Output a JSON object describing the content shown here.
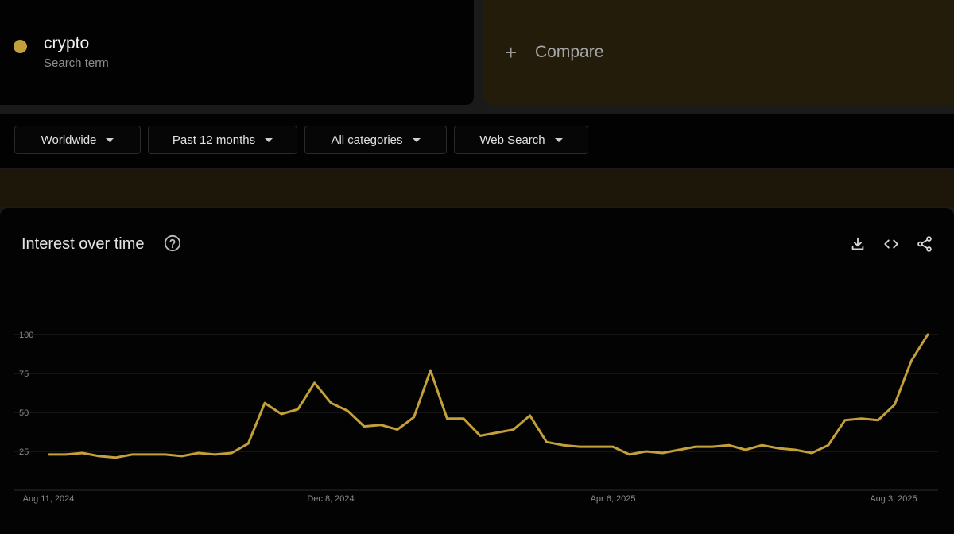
{
  "search_term": {
    "name": "crypto",
    "type": "Search term",
    "color": "#c4a03a"
  },
  "compare": {
    "label": "Compare",
    "icon": "plus-icon"
  },
  "filters": [
    {
      "label": "Worldwide"
    },
    {
      "label": "Past 12 months"
    },
    {
      "label": "All categories"
    },
    {
      "label": "Web Search"
    }
  ],
  "panel": {
    "title": "Interest over time",
    "icons": [
      "help-icon",
      "download-icon",
      "embed-icon",
      "share-icon"
    ]
  },
  "chart_data": {
    "type": "line",
    "title": "",
    "xlabel": "",
    "ylabel": "",
    "ylim": [
      0,
      100
    ],
    "yticks": [
      25,
      50,
      75,
      100
    ],
    "grid": true,
    "line_color": "#c4a03a",
    "x_tick_labels": [
      "Aug 11, 2024",
      "Dec 8, 2024",
      "Apr 6, 2025",
      "Aug 3, 2025"
    ],
    "series": [
      {
        "values": [
          23,
          23,
          24,
          22,
          21,
          23,
          23,
          23,
          22,
          24,
          23,
          24,
          30,
          56,
          49,
          52,
          69,
          56,
          51,
          41,
          42,
          39,
          47,
          77,
          46,
          46,
          35,
          37,
          39,
          48,
          31,
          29,
          28,
          28,
          28,
          23,
          25,
          24,
          26,
          28,
          28,
          29,
          26,
          29,
          27,
          26,
          24,
          29,
          45,
          46,
          45,
          55,
          83,
          100
        ]
      }
    ]
  }
}
